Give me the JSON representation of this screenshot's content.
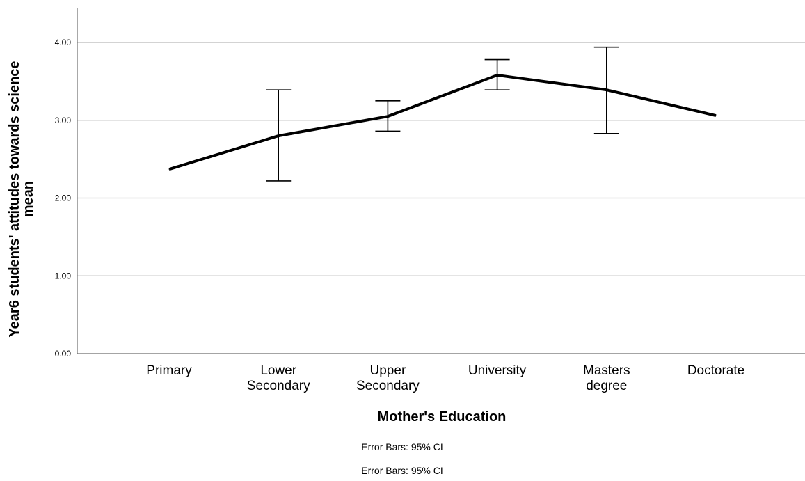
{
  "chart_data": {
    "type": "line",
    "categories": [
      [
        "Primary"
      ],
      [
        "Lower",
        "Secondary"
      ],
      [
        "Upper",
        "Secondary"
      ],
      [
        "University"
      ],
      [
        "Masters",
        "degree"
      ],
      [
        "Doctorate"
      ]
    ],
    "series": [
      {
        "values": [
          2.37,
          2.8,
          3.05,
          3.58,
          3.39,
          3.06
        ],
        "ci_lower": [
          null,
          2.22,
          2.86,
          3.39,
          2.83,
          null
        ],
        "ci_upper": [
          null,
          3.39,
          3.25,
          3.78,
          3.94,
          null
        ]
      }
    ],
    "xlabel": "Mother's Education",
    "ylabel": [
      "Year6 students' attitudes towards science",
      "mean"
    ],
    "ylim": [
      0,
      4.45
    ],
    "yticks": [
      "0.00",
      "1.00",
      "2.00",
      "3.00",
      "4.00"
    ],
    "grid": "horizontal",
    "line_color": "#000000",
    "grid_color": "#b9b9b9",
    "notes": [
      "Error Bars: 95% CI",
      "Error Bars: 95% CI"
    ]
  }
}
